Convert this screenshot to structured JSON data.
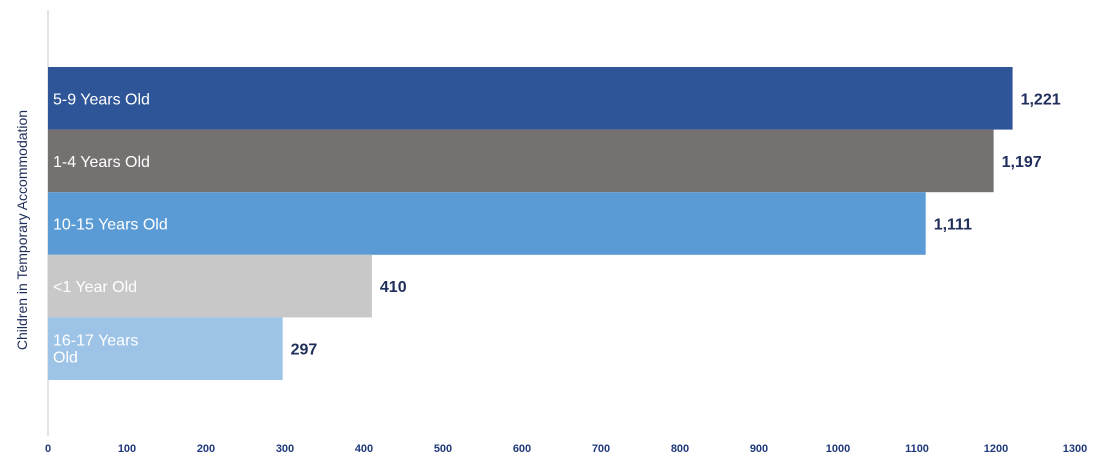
{
  "chart_data": {
    "type": "bar",
    "orientation": "horizontal",
    "categories": [
      "5-9 Years Old",
      "1-4 Years Old",
      "10-15 Years Old",
      "<1 Year Old",
      "16-17 Years Old"
    ],
    "category_label_lines": [
      [
        "5-9 Years Old"
      ],
      [
        "1-4 Years Old"
      ],
      [
        "10-15 Years Old"
      ],
      [
        "<1 Year Old"
      ],
      [
        "16-17 Years",
        "Old"
      ]
    ],
    "values": [
      1221,
      1197,
      1111,
      410,
      297
    ],
    "value_labels": [
      "1,221",
      "1,197",
      "1,111",
      "410",
      "297"
    ],
    "colors": [
      "#2e5597",
      "#757171",
      "#5b9bd5",
      "#c8c8c8",
      "#9dc3e6"
    ],
    "xlim": [
      0,
      1300
    ],
    "xticks": [
      "0",
      "100",
      "200",
      "300",
      "400",
      "500",
      "600",
      "700",
      "800",
      "900",
      "1000",
      "1100",
      "1200",
      "1300"
    ],
    "ylabel": "Children in Temporary Accommodation",
    "grid": false,
    "legend": "none",
    "value_label_color": "#1f2e5a",
    "tick_label_color": "#1f3a7a",
    "axis_color": "#c8c8c8"
  }
}
